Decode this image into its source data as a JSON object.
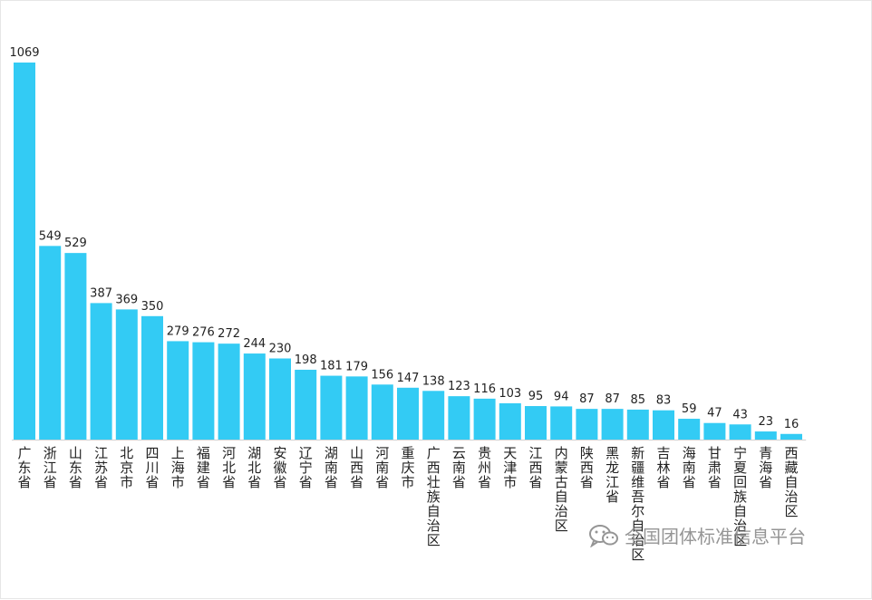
{
  "chart_data": {
    "type": "bar",
    "title": "",
    "xlabel": "",
    "ylabel": "",
    "ylim": [
      0,
      1069
    ],
    "grid": false,
    "legend": "none",
    "bar_color": "#33cbf4",
    "categories": [
      "广东省",
      "浙江省",
      "山东省",
      "江苏省",
      "北京市",
      "四川省",
      "上海市",
      "福建省",
      "河北省",
      "湖北省",
      "安徽省",
      "辽宁省",
      "湖南省",
      "山西省",
      "河南省",
      "重庆市",
      "广西壮族自治区",
      "云南省",
      "贵州省",
      "天津市",
      "江西省",
      "内蒙古自治区",
      "陕西省",
      "黑龙江省",
      "新疆维吾尔自治区",
      "吉林省",
      "海南省",
      "甘肃省",
      "宁夏回族自治区",
      "青海省",
      "西藏自治区"
    ],
    "values": [
      1069,
      549,
      529,
      387,
      369,
      350,
      279,
      276,
      272,
      244,
      230,
      198,
      181,
      179,
      156,
      147,
      138,
      123,
      116,
      103,
      95,
      94,
      87,
      87,
      85,
      83,
      59,
      47,
      43,
      23,
      16
    ]
  },
  "watermark": {
    "icon": "wechat-icon",
    "text": "全国团体标准信息平台"
  }
}
